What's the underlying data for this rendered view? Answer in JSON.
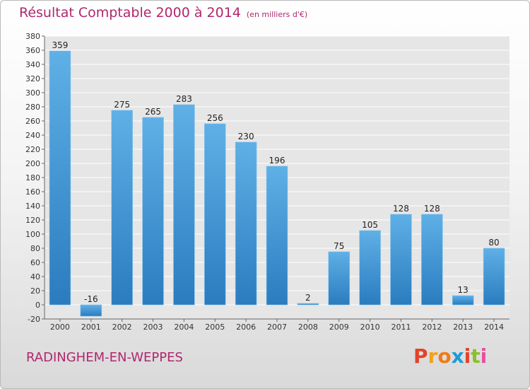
{
  "title": "Résultat Comptable 2000 à 2014",
  "unit": "(en milliers d'€)",
  "commune": "RADINGHEM-EN-WEPPES",
  "logo": {
    "text": "Proxiti",
    "colors": [
      "#e2432a",
      "#f2a11a",
      "#f07b16",
      "#1e9ad8",
      "#e2432a",
      "#8bbf2b",
      "#e94f9c"
    ]
  },
  "colors": {
    "bar_top": "#5fb0e6",
    "bar_bottom": "#2a7cbf",
    "title": "#b0276e",
    "grid": "#ffffff",
    "plot_bg": "#e6e6e6"
  },
  "chart_data": {
    "type": "bar",
    "categories": [
      "2000",
      "2001",
      "2002",
      "2003",
      "2004",
      "2005",
      "2006",
      "2007",
      "2008",
      "2009",
      "2010",
      "2011",
      "2012",
      "2013",
      "2014"
    ],
    "values": [
      359,
      -16,
      275,
      265,
      283,
      256,
      230,
      196,
      2,
      75,
      105,
      128,
      128,
      13,
      80
    ],
    "data_labels": [
      "359",
      "-16",
      "275",
      "265",
      "283",
      "256",
      "230",
      "196",
      "2",
      "75",
      "105",
      "128",
      "128",
      "13",
      "80"
    ],
    "ylim": [
      -20,
      380
    ],
    "ytick_step": 20,
    "yticks": [
      "-20",
      "0",
      "20",
      "40",
      "60",
      "80",
      "100",
      "120",
      "140",
      "160",
      "180",
      "200",
      "220",
      "240",
      "260",
      "280",
      "300",
      "320",
      "340",
      "360",
      "380"
    ],
    "grid": true,
    "legend": "none",
    "xlabel": "",
    "ylabel": ""
  }
}
